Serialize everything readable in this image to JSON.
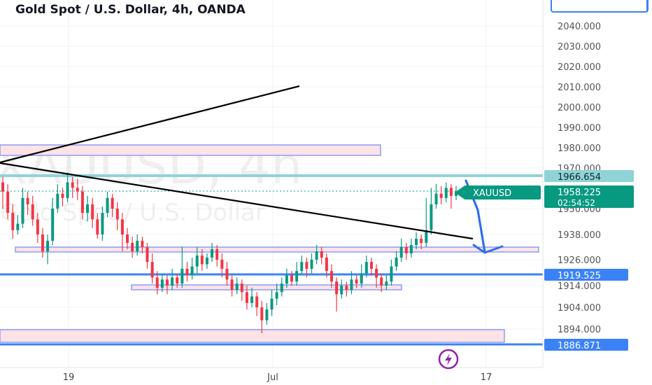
{
  "header": {
    "title": "Gold Spot / U.S. Dollar, 4h, OANDA"
  },
  "watermark": {
    "symbol": "XAUUSD, 4h",
    "description": "Gold Spot / U.S. Dollar"
  },
  "colors": {
    "up": "#089981",
    "down": "#f23645",
    "zone_fill": "#fde2e6",
    "zone_border": "#6b8cf5",
    "level_line": "#3b82f6",
    "resistance_line": "#8fd3d6",
    "price_badge": "#089981",
    "accent": "#8e24aa"
  },
  "price_badge": {
    "symbol": "XAUUSD",
    "price": "1958.225",
    "countdown": "02:54:52"
  },
  "chart_data": {
    "type": "candlestick",
    "title": "Gold Spot / U.S. Dollar, 4h, OANDA",
    "y_axis": {
      "ticks": [
        "2040.000",
        "2030.000",
        "2020.000",
        "2010.000",
        "2000.000",
        "1990.000",
        "1980.000",
        "1970.000",
        "1950.000",
        "1938.000",
        "1926.000",
        "1914.000",
        "1904.000",
        "1894.000"
      ],
      "tick_values": [
        2040,
        2030,
        2020,
        2010,
        2000,
        1990,
        1980,
        1970,
        1950,
        1938,
        1926,
        1914,
        1904,
        1894
      ]
    },
    "x_axis": {
      "ticks": [
        "19",
        "Jul",
        "17"
      ]
    },
    "horizontal_levels": [
      {
        "label": "1966.654",
        "value": 1966.654,
        "style": "resistance"
      },
      {
        "label": "1919.525",
        "value": 1919.525,
        "style": "support"
      },
      {
        "label": "1886.871",
        "value": 1886.871,
        "style": "support"
      }
    ],
    "zones": [
      {
        "name": "supply-zone",
        "low": 1979,
        "high": 1983,
        "x_end": "mid-june"
      },
      {
        "name": "demand-zone-1",
        "low": 1928,
        "high": 1930
      },
      {
        "name": "demand-zone-2",
        "low": 1912,
        "high": 1914
      },
      {
        "name": "demand-zone-3",
        "low": 1886,
        "high": 1893
      }
    ],
    "candles": [
      [
        1963,
        1958,
        1966,
        1950
      ],
      [
        1958,
        1948,
        1962,
        1945
      ],
      [
        1948,
        1940,
        1952,
        1936
      ],
      [
        1940,
        1943,
        1947,
        1938
      ],
      [
        1943,
        1955,
        1960,
        1941
      ],
      [
        1955,
        1952,
        1958,
        1947
      ],
      [
        1952,
        1945,
        1956,
        1942
      ],
      [
        1945,
        1938,
        1948,
        1934
      ],
      [
        1938,
        1930,
        1941,
        1927
      ],
      [
        1930,
        1935,
        1938,
        1924
      ],
      [
        1935,
        1950,
        1955,
        1933
      ],
      [
        1950,
        1957,
        1962,
        1948
      ],
      [
        1957,
        1955,
        1960,
        1951
      ],
      [
        1955,
        1963,
        1968,
        1953
      ],
      [
        1963,
        1960,
        1966,
        1955
      ],
      [
        1960,
        1958,
        1965,
        1954
      ],
      [
        1958,
        1948,
        1961,
        1945
      ],
      [
        1948,
        1952,
        1956,
        1944
      ],
      [
        1952,
        1945,
        1955,
        1941
      ],
      [
        1945,
        1938,
        1948,
        1936
      ],
      [
        1938,
        1948,
        1951,
        1935
      ],
      [
        1948,
        1955,
        1958,
        1946
      ],
      [
        1955,
        1950,
        1957,
        1946
      ],
      [
        1950,
        1945,
        1953,
        1940
      ],
      [
        1945,
        1938,
        1948,
        1930
      ],
      [
        1938,
        1934,
        1941,
        1931
      ],
      [
        1934,
        1930,
        1937,
        1927
      ],
      [
        1930,
        1935,
        1938,
        1928
      ],
      [
        1935,
        1932,
        1937,
        1929
      ],
      [
        1932,
        1925,
        1934,
        1922
      ],
      [
        1925,
        1918,
        1929,
        1915
      ],
      [
        1918,
        1913,
        1921,
        1910
      ],
      [
        1913,
        1917,
        1920,
        1911
      ],
      [
        1917,
        1914,
        1919,
        1910
      ],
      [
        1914,
        1918,
        1922,
        1912
      ],
      [
        1918,
        1915,
        1920,
        1913
      ],
      [
        1915,
        1922,
        1932,
        1913
      ],
      [
        1922,
        1919,
        1925,
        1916
      ],
      [
        1919,
        1923,
        1927,
        1917
      ],
      [
        1923,
        1928,
        1932,
        1920
      ],
      [
        1928,
        1924,
        1931,
        1921
      ],
      [
        1924,
        1927,
        1929,
        1922
      ],
      [
        1927,
        1931,
        1934,
        1925
      ],
      [
        1931,
        1926,
        1933,
        1923
      ],
      [
        1926,
        1922,
        1929,
        1918
      ],
      [
        1922,
        1917,
        1925,
        1914
      ],
      [
        1917,
        1912,
        1919,
        1909
      ],
      [
        1912,
        1915,
        1918,
        1910
      ],
      [
        1915,
        1911,
        1917,
        1907
      ],
      [
        1911,
        1906,
        1914,
        1903
      ],
      [
        1906,
        1909,
        1913,
        1904
      ],
      [
        1909,
        1904,
        1911,
        1900
      ],
      [
        1904,
        1898,
        1907,
        1892
      ],
      [
        1898,
        1903,
        1906,
        1896
      ],
      [
        1903,
        1908,
        1912,
        1900
      ],
      [
        1908,
        1911,
        1915,
        1905
      ],
      [
        1911,
        1915,
        1918,
        1909
      ],
      [
        1915,
        1919,
        1922,
        1913
      ],
      [
        1919,
        1916,
        1921,
        1914
      ],
      [
        1916,
        1921,
        1925,
        1914
      ],
      [
        1921,
        1925,
        1928,
        1919
      ],
      [
        1925,
        1922,
        1927,
        1918
      ],
      [
        1922,
        1926,
        1929,
        1920
      ],
      [
        1926,
        1930,
        1933,
        1924
      ],
      [
        1930,
        1927,
        1932,
        1924
      ],
      [
        1927,
        1921,
        1929,
        1918
      ],
      [
        1921,
        1916,
        1924,
        1913
      ],
      [
        1916,
        1910,
        1918,
        1902
      ],
      [
        1910,
        1914,
        1917,
        1908
      ],
      [
        1914,
        1912,
        1916,
        1909
      ],
      [
        1912,
        1917,
        1921,
        1910
      ],
      [
        1917,
        1915,
        1919,
        1913
      ],
      [
        1915,
        1920,
        1924,
        1913
      ],
      [
        1920,
        1925,
        1928,
        1918
      ],
      [
        1925,
        1922,
        1927,
        1919
      ],
      [
        1922,
        1918,
        1924,
        1913
      ],
      [
        1918,
        1914,
        1920,
        1911
      ],
      [
        1914,
        1916,
        1919,
        1912
      ],
      [
        1916,
        1923,
        1926,
        1914
      ],
      [
        1923,
        1927,
        1930,
        1921
      ],
      [
        1927,
        1932,
        1936,
        1925
      ],
      [
        1932,
        1929,
        1934,
        1926
      ],
      [
        1929,
        1933,
        1936,
        1927
      ],
      [
        1933,
        1936,
        1939,
        1931
      ],
      [
        1936,
        1934,
        1938,
        1931
      ],
      [
        1934,
        1940,
        1955,
        1932
      ],
      [
        1940,
        1952,
        1960,
        1938
      ],
      [
        1952,
        1957,
        1962,
        1950
      ],
      [
        1957,
        1955,
        1961,
        1952
      ],
      [
        1955,
        1960,
        1963,
        1953
      ],
      [
        1960,
        1956,
        1962,
        1950
      ],
      [
        1956,
        1958,
        1961,
        1954
      ]
    ]
  }
}
